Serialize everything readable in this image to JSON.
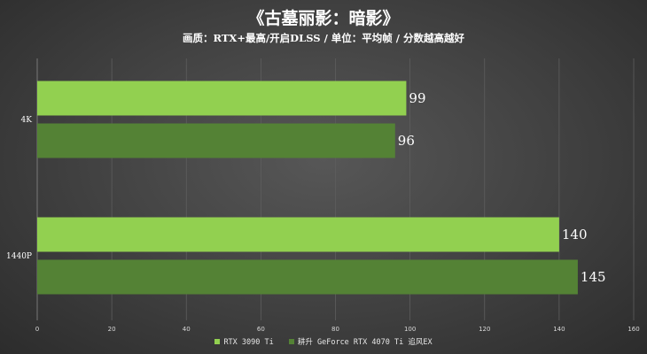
{
  "chart_data": {
    "type": "bar",
    "orientation": "horizontal",
    "title": "《古墓丽影：暗影》",
    "subtitle": "画质：RTX+最高/开启DLSS / 单位：平均帧 / 分数越高越好",
    "categories": [
      "4K",
      "1440P"
    ],
    "series": [
      {
        "name": "RTX 3090 Ti",
        "color": "#92d050",
        "values": [
          99,
          140
        ]
      },
      {
        "name": "耕升 GeForce RTX 4070 Ti 追风EX",
        "color": "#548235",
        "values": [
          96,
          145
        ]
      }
    ],
    "xlim": [
      0,
      160
    ],
    "xticks": [
      0,
      20,
      40,
      60,
      80,
      100,
      120,
      140,
      160
    ],
    "grid": true,
    "legend_position": "bottom"
  }
}
